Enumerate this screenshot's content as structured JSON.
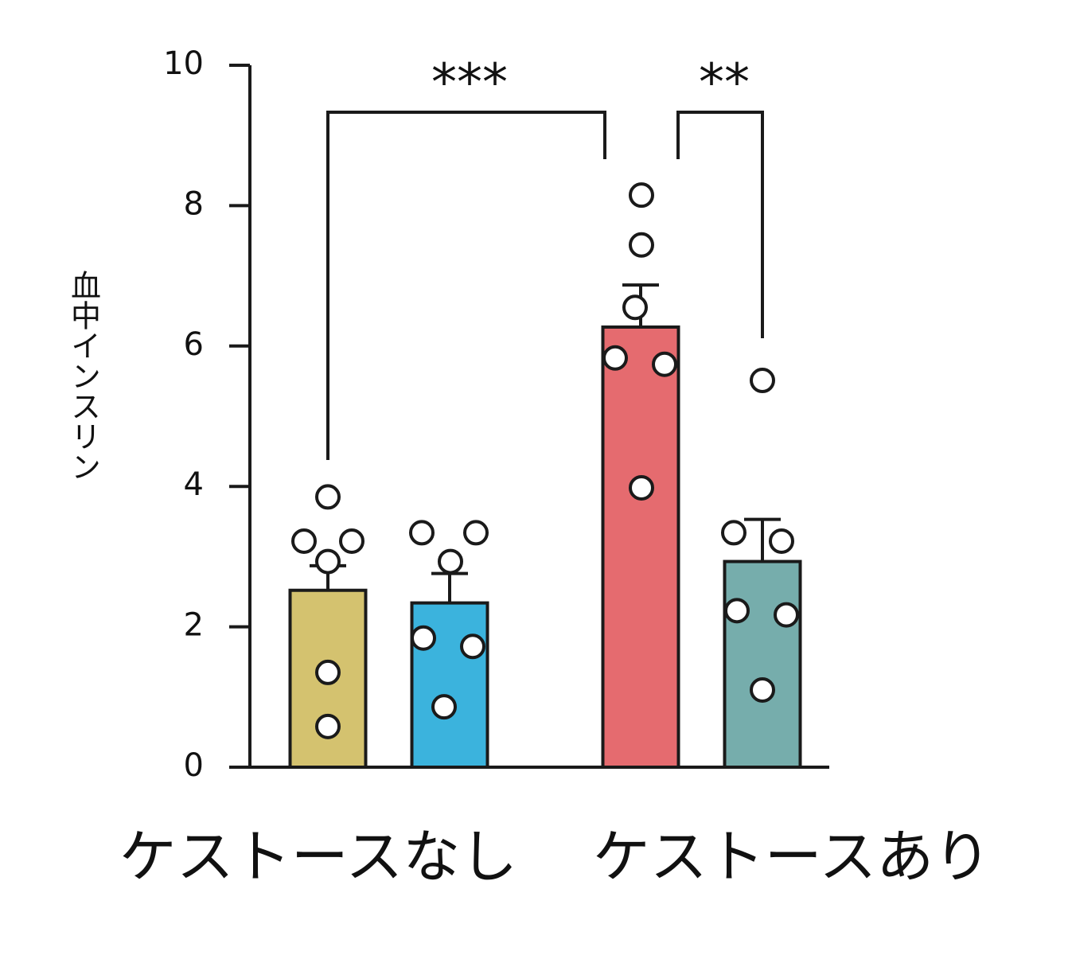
{
  "chart_data": {
    "type": "bar",
    "y_label": "血中インスリン",
    "categories": [
      null,
      null,
      null,
      null
    ],
    "groups": [
      "ケストースなし",
      "ケストースあり"
    ],
    "values": [
      2.52,
      2.34,
      6.27,
      2.93
    ],
    "errors": [
      0.35,
      0.42,
      0.6,
      0.6
    ],
    "colors": [
      "#d4c26f",
      "#3bb3dd",
      "#e56b6f",
      "#76adac"
    ],
    "points": [
      [
        3.85,
        3.22,
        3.22,
        2.93,
        1.35,
        0.58
      ],
      [
        3.34,
        3.34,
        2.93,
        1.84,
        1.72,
        0.86
      ],
      [
        8.15,
        7.44,
        6.55,
        5.83,
        5.74,
        3.98
      ],
      [
        5.51,
        3.34,
        3.22,
        2.23,
        2.17,
        1.1
      ]
    ],
    "annotations": [
      "***",
      "**"
    ],
    "ylim": [
      0,
      10
    ],
    "yticks": [
      0,
      2,
      4,
      6,
      8,
      10
    ]
  }
}
